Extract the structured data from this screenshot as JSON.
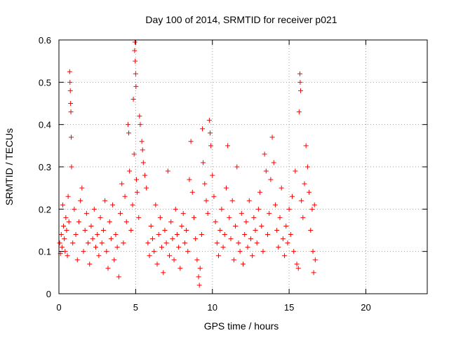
{
  "chart_data": {
    "type": "scatter",
    "title": "Day 100 of 2014, SRMTID for receiver p021",
    "xlabel": "GPS time / hours",
    "ylabel": "SRMTID / TECUs",
    "xlim": [
      0,
      24
    ],
    "ylim": [
      0,
      0.6
    ],
    "x_ticks": [
      0,
      5,
      10,
      15,
      20
    ],
    "y_ticks": [
      0,
      0.1,
      0.2,
      0.3,
      0.4,
      0.5,
      0.6
    ],
    "x_tick_labels": [
      "0",
      "5",
      "10",
      "15",
      "20"
    ],
    "y_tick_labels": [
      "0",
      "0.1",
      "0.2",
      "0.3",
      "0.4",
      "0.5",
      "0.6"
    ],
    "grid": true,
    "marker": "+",
    "marker_color": "#ff0000",
    "series": [
      {
        "name": "SRMTID p021",
        "points": [
          [
            0.05,
            0.12
          ],
          [
            0.1,
            0.095
          ],
          [
            0.15,
            0.14
          ],
          [
            0.2,
            0.11
          ],
          [
            0.25,
            0.21
          ],
          [
            0.3,
            0.16
          ],
          [
            0.35,
            0.13
          ],
          [
            0.4,
            0.1
          ],
          [
            0.45,
            0.18
          ],
          [
            0.5,
            0.15
          ],
          [
            0.55,
            0.09
          ],
          [
            0.6,
            0.23
          ],
          [
            0.65,
            0.17
          ],
          [
            0.7,
            0.525
          ],
          [
            0.72,
            0.5
          ],
          [
            0.74,
            0.48
          ],
          [
            0.76,
            0.45
          ],
          [
            0.78,
            0.43
          ],
          [
            0.8,
            0.37
          ],
          [
            0.82,
            0.3
          ],
          [
            0.9,
            0.12
          ],
          [
            1.0,
            0.2
          ],
          [
            1.1,
            0.14
          ],
          [
            1.2,
            0.08
          ],
          [
            1.3,
            0.17
          ],
          [
            1.4,
            0.22
          ],
          [
            1.5,
            0.25
          ],
          [
            1.6,
            0.1
          ],
          [
            1.7,
            0.15
          ],
          [
            1.8,
            0.19
          ],
          [
            1.9,
            0.12
          ],
          [
            2.0,
            0.07
          ],
          [
            2.1,
            0.16
          ],
          [
            2.2,
            0.13
          ],
          [
            2.3,
            0.2
          ],
          [
            2.4,
            0.11
          ],
          [
            2.5,
            0.14
          ],
          [
            2.6,
            0.09
          ],
          [
            2.7,
            0.18
          ],
          [
            2.8,
            0.12
          ],
          [
            2.9,
            0.15
          ],
          [
            3.0,
            0.22
          ],
          [
            3.1,
            0.1
          ],
          [
            3.2,
            0.06
          ],
          [
            3.3,
            0.17
          ],
          [
            3.4,
            0.13
          ],
          [
            3.5,
            0.21
          ],
          [
            3.6,
            0.08
          ],
          [
            3.7,
            0.14
          ],
          [
            3.8,
            0.11
          ],
          [
            3.9,
            0.04
          ],
          [
            4.0,
            0.19
          ],
          [
            4.1,
            0.26
          ],
          [
            4.2,
            0.12
          ],
          [
            4.3,
            0.23
          ],
          [
            4.4,
            0.17
          ],
          [
            4.5,
            0.4
          ],
          [
            4.55,
            0.38
          ],
          [
            4.6,
            0.29
          ],
          [
            4.7,
            0.15
          ],
          [
            4.8,
            0.21
          ],
          [
            4.85,
            0.46
          ],
          [
            4.9,
            0.33
          ],
          [
            4.93,
            0.575
          ],
          [
            4.95,
            0.595
          ],
          [
            4.97,
            0.55
          ],
          [
            5.0,
            0.52
          ],
          [
            5.02,
            0.49
          ],
          [
            5.05,
            0.27
          ],
          [
            5.1,
            0.24
          ],
          [
            5.2,
            0.18
          ],
          [
            5.25,
            0.42
          ],
          [
            5.3,
            0.4
          ],
          [
            5.4,
            0.36
          ],
          [
            5.45,
            0.34
          ],
          [
            5.5,
            0.31
          ],
          [
            5.6,
            0.28
          ],
          [
            5.7,
            0.25
          ],
          [
            5.8,
            0.12
          ],
          [
            5.9,
            0.09
          ],
          [
            6.0,
            0.16
          ],
          [
            6.1,
            0.13
          ],
          [
            6.2,
            0.1
          ],
          [
            6.3,
            0.21
          ],
          [
            6.4,
            0.07
          ],
          [
            6.5,
            0.14
          ],
          [
            6.6,
            0.18
          ],
          [
            6.7,
            0.11
          ],
          [
            6.8,
            0.05
          ],
          [
            6.9,
            0.15
          ],
          [
            7.0,
            0.12
          ],
          [
            7.1,
            0.29
          ],
          [
            7.2,
            0.09
          ],
          [
            7.3,
            0.17
          ],
          [
            7.4,
            0.13
          ],
          [
            7.5,
            0.08
          ],
          [
            7.6,
            0.2
          ],
          [
            7.7,
            0.14
          ],
          [
            7.8,
            0.11
          ],
          [
            7.9,
            0.06
          ],
          [
            8.0,
            0.16
          ],
          [
            8.1,
            0.19
          ],
          [
            8.2,
            0.12
          ],
          [
            8.3,
            0.15
          ],
          [
            8.4,
            0.1
          ],
          [
            8.5,
            0.27
          ],
          [
            8.6,
            0.36
          ],
          [
            8.7,
            0.24
          ],
          [
            8.8,
            0.18
          ],
          [
            8.9,
            0.13
          ],
          [
            9.0,
            0.08
          ],
          [
            9.1,
            0.04
          ],
          [
            9.15,
            0.02
          ],
          [
            9.2,
            0.06
          ],
          [
            9.3,
            0.14
          ],
          [
            9.35,
            0.39
          ],
          [
            9.4,
            0.31
          ],
          [
            9.5,
            0.26
          ],
          [
            9.6,
            0.22
          ],
          [
            9.7,
            0.19
          ],
          [
            9.8,
            0.41
          ],
          [
            9.85,
            0.38
          ],
          [
            9.9,
            0.35
          ],
          [
            10.0,
            0.28
          ],
          [
            10.1,
            0.23
          ],
          [
            10.2,
            0.17
          ],
          [
            10.3,
            0.12
          ],
          [
            10.4,
            0.09
          ],
          [
            10.5,
            0.15
          ],
          [
            10.6,
            0.2
          ],
          [
            10.7,
            0.11
          ],
          [
            10.8,
            0.14
          ],
          [
            10.9,
            0.25
          ],
          [
            11.0,
            0.35
          ],
          [
            11.1,
            0.18
          ],
          [
            11.2,
            0.13
          ],
          [
            11.3,
            0.22
          ],
          [
            11.4,
            0.08
          ],
          [
            11.5,
            0.16
          ],
          [
            11.6,
            0.3
          ],
          [
            11.7,
            0.12
          ],
          [
            11.8,
            0.1
          ],
          [
            11.9,
            0.19
          ],
          [
            12.0,
            0.07
          ],
          [
            12.1,
            0.14
          ],
          [
            12.2,
            0.17
          ],
          [
            12.3,
            0.11
          ],
          [
            12.4,
            0.22
          ],
          [
            12.5,
            0.13
          ],
          [
            12.6,
            0.09
          ],
          [
            12.7,
            0.18
          ],
          [
            12.8,
            0.15
          ],
          [
            12.9,
            0.12
          ],
          [
            13.0,
            0.2
          ],
          [
            13.1,
            0.24
          ],
          [
            13.2,
            0.16
          ],
          [
            13.3,
            0.1
          ],
          [
            13.4,
            0.33
          ],
          [
            13.5,
            0.29
          ],
          [
            13.6,
            0.14
          ],
          [
            13.7,
            0.19
          ],
          [
            13.8,
            0.27
          ],
          [
            13.9,
            0.37
          ],
          [
            14.0,
            0.31
          ],
          [
            14.1,
            0.21
          ],
          [
            14.2,
            0.15
          ],
          [
            14.3,
            0.11
          ],
          [
            14.4,
            0.18
          ],
          [
            14.5,
            0.25
          ],
          [
            14.6,
            0.13
          ],
          [
            14.7,
            0.09
          ],
          [
            14.8,
            0.16
          ],
          [
            14.9,
            0.12
          ],
          [
            15.0,
            0.2
          ],
          [
            15.1,
            0.14
          ],
          [
            15.2,
            0.23
          ],
          [
            15.3,
            0.1
          ],
          [
            15.4,
            0.29
          ],
          [
            15.5,
            0.07
          ],
          [
            15.6,
            0.06
          ],
          [
            15.65,
            0.43
          ],
          [
            15.7,
            0.52
          ],
          [
            15.72,
            0.5
          ],
          [
            15.75,
            0.48
          ],
          [
            15.8,
            0.22
          ],
          [
            15.9,
            0.18
          ],
          [
            16.0,
            0.26
          ],
          [
            16.1,
            0.35
          ],
          [
            16.2,
            0.3
          ],
          [
            16.3,
            0.24
          ],
          [
            16.4,
            0.15
          ],
          [
            16.5,
            0.2
          ],
          [
            16.55,
            0.1
          ],
          [
            16.6,
            0.05
          ],
          [
            16.65,
            0.21
          ],
          [
            16.7,
            0.08
          ]
        ]
      }
    ]
  }
}
